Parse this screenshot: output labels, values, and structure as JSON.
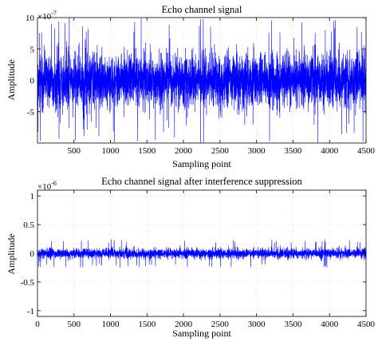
{
  "chart_data": [
    {
      "type": "line",
      "title": "Echo channel signal",
      "xlabel": "Sampling point",
      "ylabel": "Amplitude",
      "exponent_label": "×10",
      "exponent": "-7",
      "xlim": [
        1,
        4500
      ],
      "ylim": [
        -10,
        10
      ],
      "xticks": [
        500,
        1000,
        1500,
        2000,
        2500,
        3000,
        3500,
        4000,
        4500
      ],
      "yticks": [
        -5,
        0,
        5,
        10
      ],
      "grid": true,
      "series": [
        {
          "color": "#0000ff",
          "n_samples": 4500,
          "typical_amplitude": 3.5,
          "peak_amplitude": 10,
          "description": "dense noise-like echo signal centered at 0"
        }
      ]
    },
    {
      "type": "line",
      "title": "Echo channel signal after interference suppression",
      "xlabel": "Sampling point",
      "ylabel": "Amplitude",
      "exponent_label": "×10",
      "exponent": "-6",
      "xlim": [
        0,
        4500
      ],
      "ylim": [
        -1.1,
        1.1
      ],
      "xticks": [
        0,
        500,
        1000,
        1500,
        2000,
        2500,
        3000,
        3500,
        4000,
        4500
      ],
      "yticks": [
        -1,
        -0.5,
        0,
        0.5,
        1
      ],
      "grid": true,
      "series": [
        {
          "color": "#0000ff",
          "n_samples": 4500,
          "typical_amplitude": 0.07,
          "peak_amplitude": 0.25,
          "description": "suppressed noise-like signal centered at 0"
        }
      ]
    }
  ]
}
